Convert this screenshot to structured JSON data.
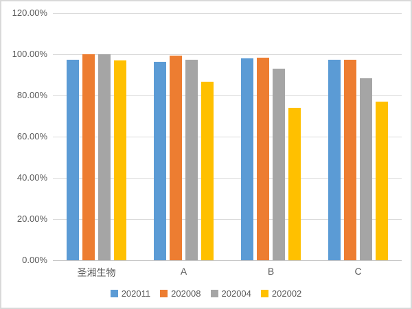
{
  "chart_data": {
    "type": "bar",
    "title": "",
    "categories": [
      "圣湘生物",
      "A",
      "B",
      "C"
    ],
    "series": [
      {
        "name": "202011",
        "color": "#5B9BD5",
        "values": [
          97.4,
          96.3,
          98.1,
          97.2
        ]
      },
      {
        "name": "202008",
        "color": "#ED7D31",
        "values": [
          100.0,
          99.2,
          98.2,
          97.2
        ]
      },
      {
        "name": "202004",
        "color": "#A5A5A5",
        "values": [
          100.0,
          97.4,
          92.9,
          88.4
        ]
      },
      {
        "name": "202002",
        "color": "#FFC000",
        "values": [
          97.1,
          86.6,
          74.1,
          77.0
        ]
      }
    ],
    "xlabel": "",
    "ylabel": "",
    "ylim": [
      0,
      120
    ],
    "ytick_step": 20,
    "yticks": [
      {
        "value": 0,
        "label": "0.00%"
      },
      {
        "value": 20,
        "label": "20.00%"
      },
      {
        "value": 40,
        "label": "40.00%"
      },
      {
        "value": 60,
        "label": "60.00%"
      },
      {
        "value": 80,
        "label": "80.00%"
      },
      {
        "value": 100,
        "label": "100.00%"
      },
      {
        "value": 120,
        "label": "120.00%"
      }
    ],
    "grid": true,
    "legend_position": "bottom",
    "legend_entries": [
      "202011",
      "202008",
      "202004",
      "202002"
    ]
  },
  "colors": {
    "gridline": "#D9D9D9",
    "axis_line": "#C6C6C6",
    "text": "#595959",
    "frame_border": "#D9D9D9",
    "background": "#FFFFFF"
  }
}
